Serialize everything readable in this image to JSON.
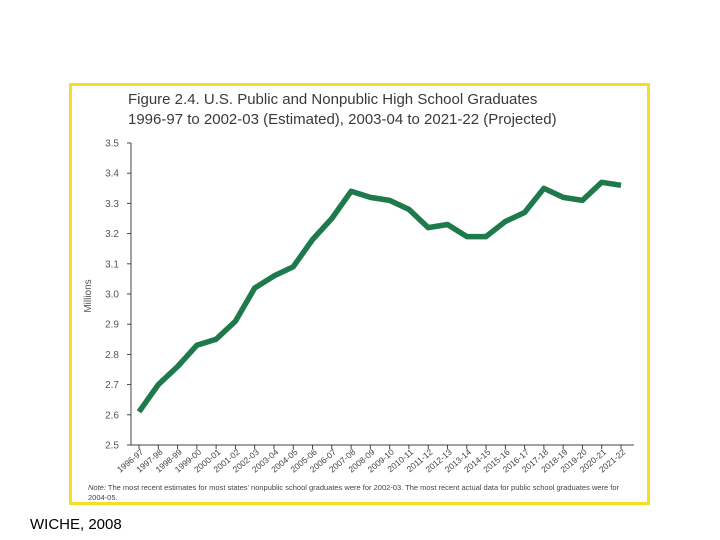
{
  "chart_data": {
    "type": "line",
    "title_line1": "Figure 2.4.  U.S. Public and Nonpublic High School Graduates",
    "title_line2": "1996-97 to 2002-03 (Estimated), 2003-04 to 2021-22 (Projected)",
    "ylabel": "Millions",
    "xlabel": "",
    "ylim": [
      2.5,
      3.5
    ],
    "y_ticks": [
      "2.5",
      "2.6",
      "2.7",
      "2.8",
      "2.9",
      "3.0",
      "3.1",
      "3.2",
      "3.3",
      "3.4",
      "3.5"
    ],
    "y_tick_values": [
      2.5,
      2.6,
      2.7,
      2.8,
      2.9,
      3.0,
      3.1,
      3.2,
      3.3,
      3.4,
      3.5
    ],
    "categories": [
      "1996-97",
      "1997-98",
      "1998-99",
      "1999-00",
      "2000-01",
      "2001-02",
      "2002-03",
      "2003-04",
      "2004-05",
      "2005-06",
      "2006-07",
      "2007-08",
      "2008-09",
      "2009-10",
      "2010-11",
      "2011-12",
      "2012-13",
      "2013-14",
      "2014-15",
      "2015-16",
      "2016-17",
      "2017-18",
      "2018-19",
      "2019-20",
      "2020-21",
      "2021-22"
    ],
    "series": [
      {
        "name": "U.S. Public and Nonpublic High School Graduates",
        "color": "#1e7a4c",
        "values": [
          2.61,
          2.7,
          2.76,
          2.83,
          2.85,
          2.91,
          3.02,
          3.06,
          3.09,
          3.18,
          3.25,
          3.34,
          3.32,
          3.31,
          3.28,
          3.22,
          3.23,
          3.19,
          3.19,
          3.24,
          3.27,
          3.35,
          3.32,
          3.31,
          3.37,
          3.36
        ]
      }
    ],
    "grid": false,
    "note_label": "Note:",
    "note_text": "The most recent estimates for most states' nonpublic school graduates were for 2002-03. The most recent actual data for public school graduates were for 2004-05."
  },
  "source": "WICHE, 2008",
  "colors": {
    "frame": "#f5dd2a",
    "line": "#1e7a4c",
    "axis": "#444444"
  }
}
